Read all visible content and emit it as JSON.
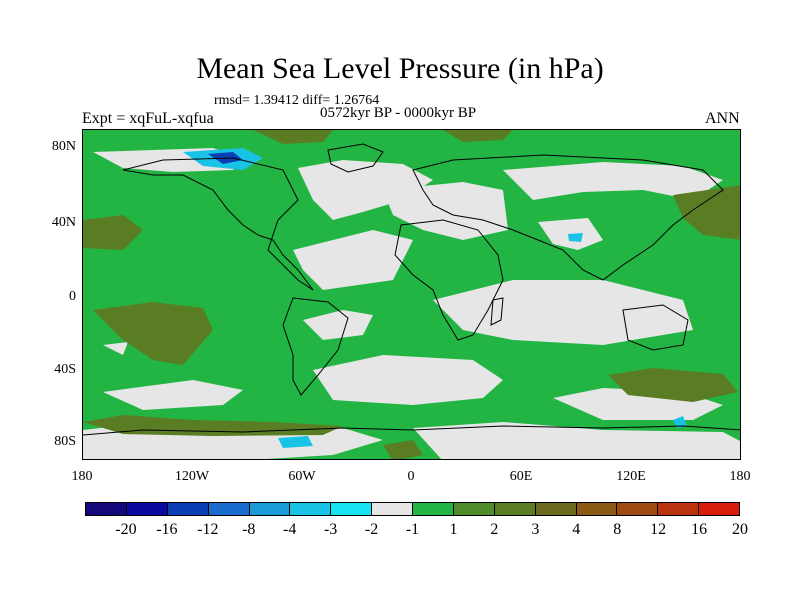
{
  "title": "Mean Sea Level Pressure (in hPa)",
  "stats_line": "rmsd= 1.39412 diff= 1.26764",
  "period": "0572kyr BP - 0000kyr BP",
  "experiment": "Expt = xqFuL-xqfua",
  "season": "ANN",
  "lat_labels": [
    "80N",
    "40N",
    "0",
    "40S",
    "80S"
  ],
  "lon_labels": [
    "180",
    "120W",
    "60W",
    "0",
    "60E",
    "120E",
    "180"
  ],
  "legend": {
    "colors": [
      "#15087a",
      "#0a0aa0",
      "#0d3fb4",
      "#1a6ccf",
      "#1a9bd6",
      "#19c3e6",
      "#16e4f2",
      "#e6e6e6",
      "#23b544",
      "#4e8d2a",
      "#5a7d23",
      "#6c6a1c",
      "#8b5a17",
      "#a04a13",
      "#b8330e",
      "#d81e0a"
    ],
    "labels": [
      "-20",
      "-16",
      "-12",
      "-8",
      "-4",
      "-3",
      "-2",
      "-1",
      "1",
      "2",
      "3",
      "4",
      "8",
      "12",
      "16",
      "20"
    ]
  },
  "map_colors": {
    "green": "#23b544",
    "grey": "#e6e6e6",
    "olive": "#5a7d23",
    "cyan": "#19c3e6",
    "dark_blue": "#0d3fb4",
    "coast": "#000000"
  }
}
